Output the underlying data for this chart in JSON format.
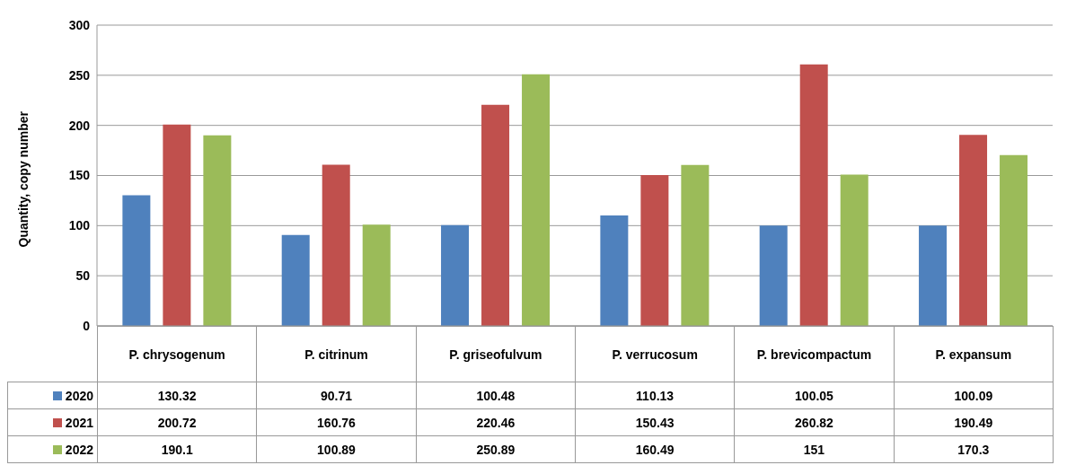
{
  "chart_data": {
    "type": "bar",
    "ylabel": "Quantity, copy number",
    "categories": [
      "P. chrysogenum",
      "P. citrinum",
      "P. griseofulvum",
      "P. verrucosum",
      "P. brevicompactum",
      "P. expansum"
    ],
    "series": [
      {
        "name": "2020",
        "color": "#4f81bd",
        "values": [
          130.32,
          90.71,
          100.48,
          110.13,
          100.05,
          100.09
        ]
      },
      {
        "name": "2021",
        "color": "#c0504d",
        "values": [
          200.72,
          160.76,
          220.46,
          150.43,
          260.82,
          190.49
        ]
      },
      {
        "name": "2022",
        "color": "#9bbb59",
        "values": [
          190.1,
          100.89,
          250.89,
          160.49,
          151,
          170.3
        ]
      }
    ],
    "ylim": [
      0,
      300
    ],
    "yticks": [
      0,
      50,
      100,
      150,
      200,
      250,
      300
    ],
    "grid": "y",
    "legend": "bottom",
    "data_labels": true
  }
}
